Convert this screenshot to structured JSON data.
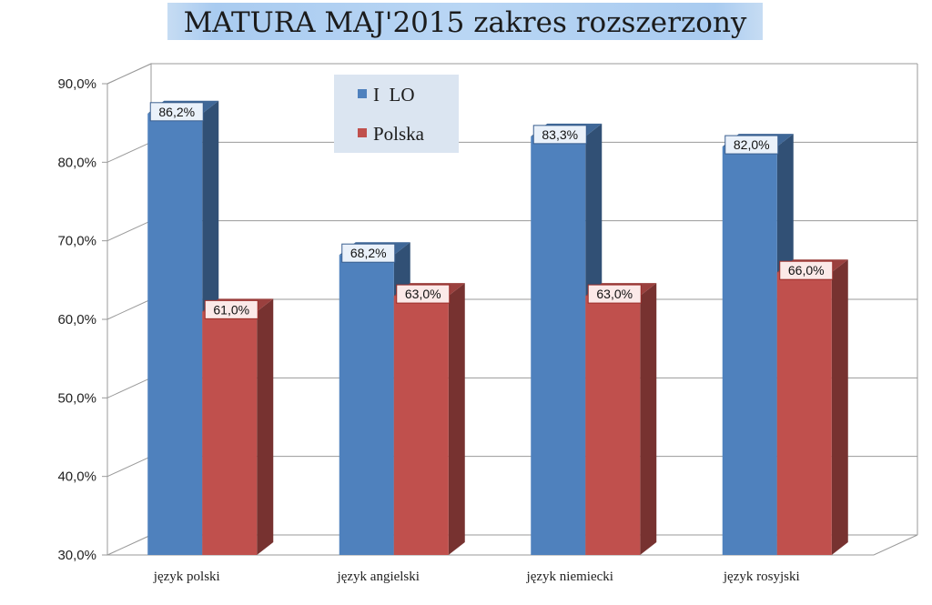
{
  "chart_data": {
    "type": "bar",
    "title": "MATURA MAJ'2015 zakres rozszerzony",
    "categories": [
      "język polski",
      "język angielski",
      "język niemiecki",
      "język rosyjski"
    ],
    "series": [
      {
        "name": "I  LO",
        "values": [
          86.2,
          68.2,
          83.3,
          82.0
        ],
        "labels": [
          "86,2%",
          "68,2%",
          "83,3%",
          "82,0%"
        ],
        "color": "#4f81bd"
      },
      {
        "name": "Polska",
        "values": [
          61.0,
          63.0,
          63.0,
          66.0
        ],
        "labels": [
          "61,0%",
          "63,0%",
          "63,0%",
          "66,0%"
        ],
        "color": "#c0504d"
      }
    ],
    "y_ticks": [
      "30,0%",
      "40,0%",
      "50,0%",
      "60,0%",
      "70,0%",
      "80,0%",
      "90,0%"
    ],
    "ylim": [
      30,
      90
    ],
    "xlabel": "",
    "ylabel": "",
    "grid": true,
    "legend_position": "top-center",
    "style": "3d-clustered-column"
  }
}
